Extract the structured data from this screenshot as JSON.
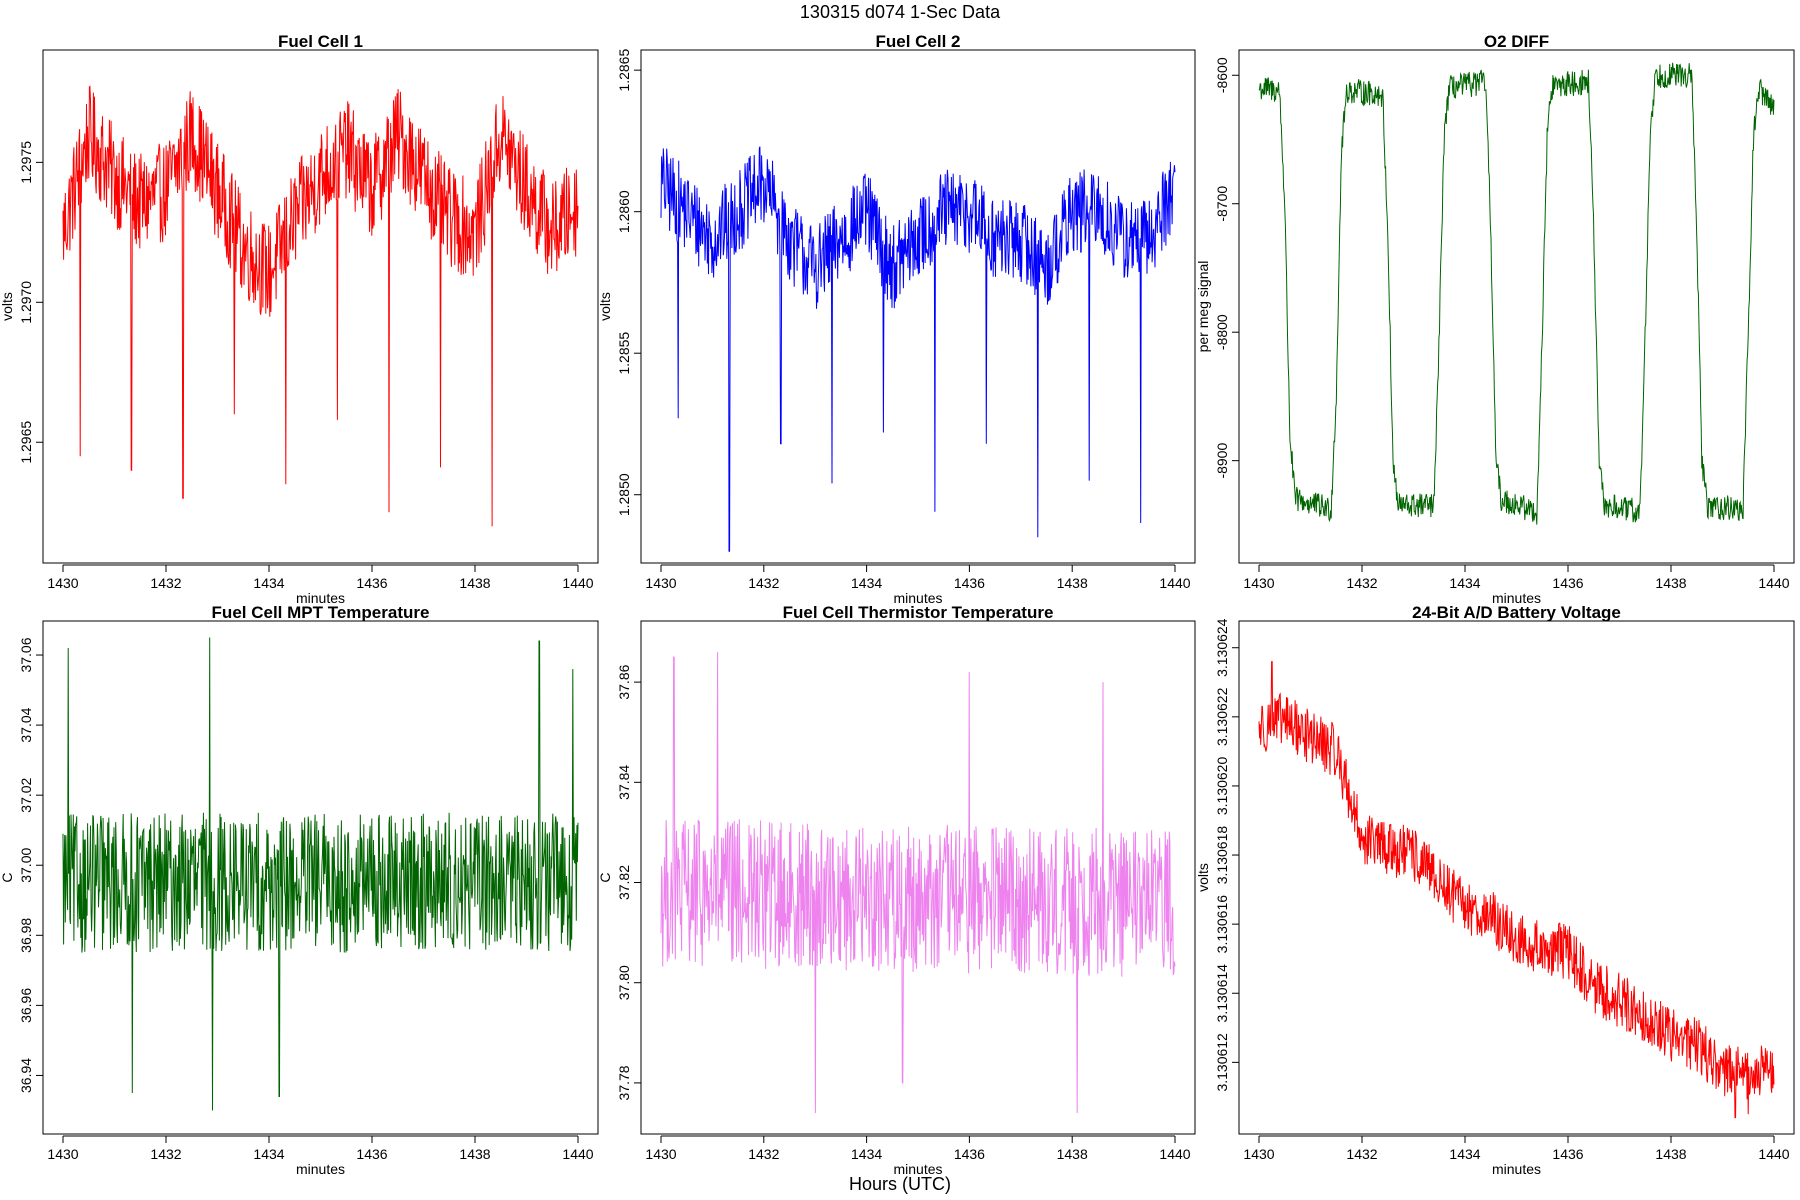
{
  "page": {
    "title": "130315   d074   1-Sec Data",
    "xlabel_outer": "Hours (UTC)"
  },
  "chart_data": [
    {
      "type": "line",
      "title": "Fuel Cell 1",
      "xlabel": "minutes",
      "ylabel": "volts",
      "color": "#ff0000",
      "xlim": [
        1430,
        1440
      ],
      "ylim": [
        1.29609,
        1.29788
      ],
      "xticks": [
        1430,
        1432,
        1434,
        1436,
        1438,
        1440
      ],
      "yticks": [
        1.2965,
        1.297,
        1.2975
      ],
      "ytick_labels": [
        "1.2965",
        "1.2970",
        "1.2975"
      ],
      "series": [
        {
          "x": [
            1430.0,
            1430.5,
            1431.0,
            1431.5,
            1432.0,
            1432.5,
            1433.0,
            1433.5,
            1434.0,
            1434.5,
            1435.0,
            1435.5,
            1436.0,
            1436.5,
            1437.0,
            1437.5,
            1438.0,
            1438.5,
            1439.0,
            1439.5,
            1440.0
          ],
          "y": [
            1.29725,
            1.2976,
            1.29745,
            1.29735,
            1.2974,
            1.2976,
            1.2974,
            1.2972,
            1.2971,
            1.2973,
            1.29745,
            1.29755,
            1.2974,
            1.2976,
            1.29745,
            1.2973,
            1.29725,
            1.2976,
            1.2974,
            1.29725,
            1.29735
          ],
          "noise": 0.00018,
          "spikes": [
            [
              1430.33,
              1.29645
            ],
            [
              1431.33,
              1.2964
            ],
            [
              1432.33,
              1.2963
            ],
            [
              1433.33,
              1.2966
            ],
            [
              1434.33,
              1.29635
            ],
            [
              1435.33,
              1.29658
            ],
            [
              1436.33,
              1.29625
            ],
            [
              1437.33,
              1.29641
            ],
            [
              1438.33,
              1.2962
            ]
          ]
        }
      ]
    },
    {
      "type": "line",
      "title": "Fuel Cell 2",
      "xlabel": "minutes",
      "ylabel": "volts",
      "color": "#0000ff",
      "xlim": [
        1430,
        1440
      ],
      "ylim": [
        1.28478,
        1.28655
      ],
      "xticks": [
        1430,
        1432,
        1434,
        1436,
        1438,
        1440
      ],
      "yticks": [
        1.285,
        1.2855,
        1.286,
        1.2865
      ],
      "ytick_labels": [
        "1.2850",
        "1.2855",
        "1.2860",
        "1.2865"
      ],
      "series": [
        {
          "x": [
            1430.0,
            1430.5,
            1431.0,
            1431.5,
            1432.0,
            1432.5,
            1433.0,
            1433.5,
            1434.0,
            1434.5,
            1435.0,
            1435.5,
            1436.0,
            1436.5,
            1437.0,
            1437.5,
            1438.0,
            1438.5,
            1439.0,
            1439.5,
            1440.0
          ],
          "y": [
            1.2861,
            1.286,
            1.2859,
            1.286,
            1.2861,
            1.2859,
            1.2858,
            1.2859,
            1.286,
            1.2858,
            1.2859,
            1.286,
            1.286,
            1.2859,
            1.2859,
            1.2858,
            1.286,
            1.286,
            1.2859,
            1.2859,
            1.2861
          ],
          "noise": 0.00015,
          "spikes": [
            [
              1430.33,
              1.28527
            ],
            [
              1431.33,
              1.2848
            ],
            [
              1432.33,
              1.28518
            ],
            [
              1433.33,
              1.28504
            ],
            [
              1434.33,
              1.28522
            ],
            [
              1435.33,
              1.28494
            ],
            [
              1436.33,
              1.28518
            ],
            [
              1437.33,
              1.28485
            ],
            [
              1438.33,
              1.28505
            ],
            [
              1439.33,
              1.2849
            ]
          ]
        }
      ]
    },
    {
      "type": "line",
      "title": "O2 DIFF",
      "xlabel": "minutes",
      "ylabel": "per meg signal",
      "color": "#006400",
      "xlim": [
        1430,
        1440
      ],
      "ylim": [
        -8975,
        -8585
      ],
      "xticks": [
        1430,
        1432,
        1434,
        1436,
        1438,
        1440
      ],
      "yticks": [
        -8900,
        -8800,
        -8700,
        -8600
      ],
      "ytick_labels": [
        "-8900",
        "-8800",
        "-8700",
        "-8600"
      ],
      "series": [
        {
          "x": [
            1430.0,
            1430.4,
            1430.5,
            1430.6,
            1430.7,
            1431.4,
            1431.5,
            1431.6,
            1431.7,
            1432.4,
            1432.5,
            1432.6,
            1432.7,
            1433.4,
            1433.5,
            1433.6,
            1433.7,
            1434.4,
            1434.5,
            1434.6,
            1434.7,
            1435.4,
            1435.5,
            1435.6,
            1435.7,
            1436.4,
            1436.5,
            1436.6,
            1436.7,
            1437.4,
            1437.5,
            1437.6,
            1437.7,
            1438.4,
            1438.5,
            1438.6,
            1438.7,
            1439.4,
            1439.5,
            1439.6,
            1439.7,
            1440.0
          ],
          "y": [
            -8610,
            -8612,
            -8700,
            -8880,
            -8930,
            -8938,
            -8850,
            -8660,
            -8612,
            -8615,
            -8720,
            -8900,
            -8935,
            -8935,
            -8800,
            -8640,
            -8610,
            -8605,
            -8720,
            -8900,
            -8930,
            -8940,
            -8800,
            -8640,
            -8608,
            -8605,
            -8720,
            -8900,
            -8935,
            -8940,
            -8800,
            -8640,
            -8600,
            -8600,
            -8720,
            -8900,
            -8935,
            -8938,
            -8800,
            -8650,
            -8610,
            -8625
          ],
          "noise": 10
        }
      ]
    },
    {
      "type": "line",
      "title": "Fuel Cell MPT Temperature",
      "xlabel": "minutes",
      "ylabel": "C",
      "color": "#006400",
      "xlim": [
        1430,
        1440
      ],
      "ylim": [
        36.925,
        37.068
      ],
      "xticks": [
        1430,
        1432,
        1434,
        1436,
        1438,
        1440
      ],
      "yticks": [
        36.94,
        36.96,
        36.98,
        37.0,
        37.02,
        37.04,
        37.06
      ],
      "ytick_labels": [
        "36.94",
        "36.96",
        "36.98",
        "37.00",
        "37.02",
        "37.04",
        "37.06"
      ],
      "series": [
        {
          "x": [
            1430.0,
            1440.0
          ],
          "y": [
            36.995,
            36.995
          ],
          "noise": 0.02,
          "spikes": [
            [
              1430.1,
              37.062
            ],
            [
              1431.35,
              36.935
            ],
            [
              1432.85,
              37.065
            ],
            [
              1432.9,
              36.93
            ],
            [
              1434.2,
              36.934
            ],
            [
              1439.25,
              37.064
            ],
            [
              1439.9,
              37.056
            ]
          ]
        }
      ]
    },
    {
      "type": "line",
      "title": "Fuel Cell Thermistor Temperature",
      "xlabel": "minutes",
      "ylabel": "C",
      "color": "#ee82ee",
      "xlim": [
        1430,
        1440
      ],
      "ylim": [
        37.771,
        37.871
      ],
      "xticks": [
        1430,
        1432,
        1434,
        1436,
        1438,
        1440
      ],
      "yticks": [
        37.78,
        37.8,
        37.82,
        37.84,
        37.86
      ],
      "ytick_labels": [
        "37.78",
        "37.80",
        "37.82",
        "37.84",
        "37.86"
      ],
      "series": [
        {
          "x": [
            1430.0,
            1440.0
          ],
          "y": [
            37.818,
            37.816
          ],
          "noise": 0.015,
          "spikes": [
            [
              1430.25,
              37.865
            ],
            [
              1431.1,
              37.866
            ],
            [
              1433.0,
              37.774
            ],
            [
              1434.7,
              37.78
            ],
            [
              1436.0,
              37.862
            ],
            [
              1438.1,
              37.774
            ],
            [
              1438.6,
              37.86
            ]
          ]
        }
      ]
    },
    {
      "type": "line",
      "title": "24-Bit A/D Battery Voltage",
      "xlabel": "minutes",
      "ylabel": "volts",
      "color": "#ff0000",
      "xlim": [
        1430,
        1440
      ],
      "ylim": [
        3.1306101,
        3.1306246
      ],
      "xticks": [
        1430,
        1432,
        1434,
        1436,
        1438,
        1440
      ],
      "yticks": [
        3.130612,
        3.130614,
        3.130616,
        3.130618,
        3.13062,
        3.130622,
        3.130624
      ],
      "ytick_labels": [
        "3.130612",
        "3.130614",
        "3.130616",
        "3.130618",
        "3.130620",
        "3.130622",
        "3.130624"
      ],
      "series": [
        {
          "x": [
            1430.0,
            1430.5,
            1431.0,
            1431.5,
            1432.0,
            1432.5,
            1433.0,
            1433.5,
            1434.0,
            1434.5,
            1435.0,
            1435.5,
            1436.0,
            1436.5,
            1437.0,
            1437.5,
            1438.0,
            1438.5,
            1439.0,
            1439.5,
            1440.0
          ],
          "y": [
            3.1306217,
            3.1306219,
            3.1306214,
            3.130621,
            3.1306185,
            3.1306182,
            3.130618,
            3.1306172,
            3.1306165,
            3.1306162,
            3.1306155,
            3.1306153,
            3.1306152,
            3.1306142,
            3.1306138,
            3.1306133,
            3.1306128,
            3.1306125,
            3.1306118,
            3.1306116,
            3.1306118
          ],
          "noise": 8e-07,
          "spikes": [
            [
              1430.25,
              3.1306236
            ],
            [
              1439.25,
              3.1306104
            ],
            [
              1439.5,
              3.1306105
            ]
          ]
        }
      ]
    }
  ]
}
